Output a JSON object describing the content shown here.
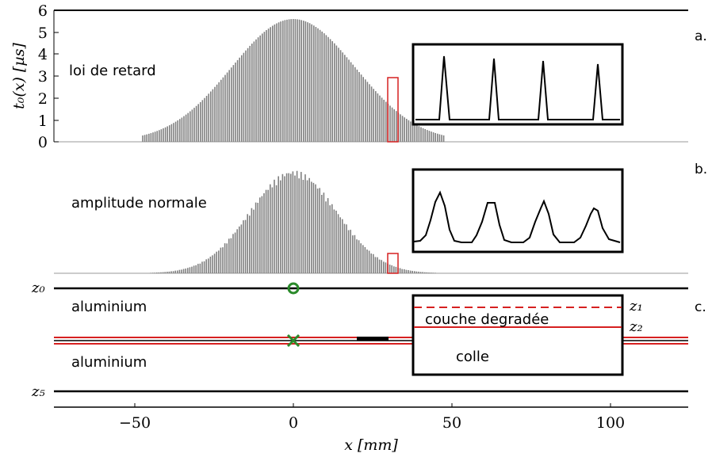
{
  "panels": {
    "a": {
      "tag": "a.",
      "label": "loi de retard",
      "ylabel": "t₀(x) [µs]",
      "yticks": [
        "0",
        "1",
        "2",
        "3",
        "4",
        "5",
        "6"
      ]
    },
    "b": {
      "tag": "b.",
      "label": "amplitude normale"
    },
    "c": {
      "tag": "c.",
      "z0": "z₀",
      "z5": "z₅",
      "layer_top": "aluminium",
      "layer_bottom": "aluminium",
      "z1": "z₁",
      "z2": "z₂",
      "degraded_label": "couche degradée",
      "glue_label": "colle"
    }
  },
  "xaxis": {
    "label": "x [mm]",
    "ticks": [
      "−50",
      "0",
      "50",
      "100"
    ],
    "tick_values": [
      -50,
      0,
      50,
      100
    ],
    "range": [
      -75,
      125
    ]
  },
  "colors": {
    "bars": "#808080",
    "highlight": "#d62020",
    "marker": "#2a8a2a",
    "axis": "#000000"
  }
}
